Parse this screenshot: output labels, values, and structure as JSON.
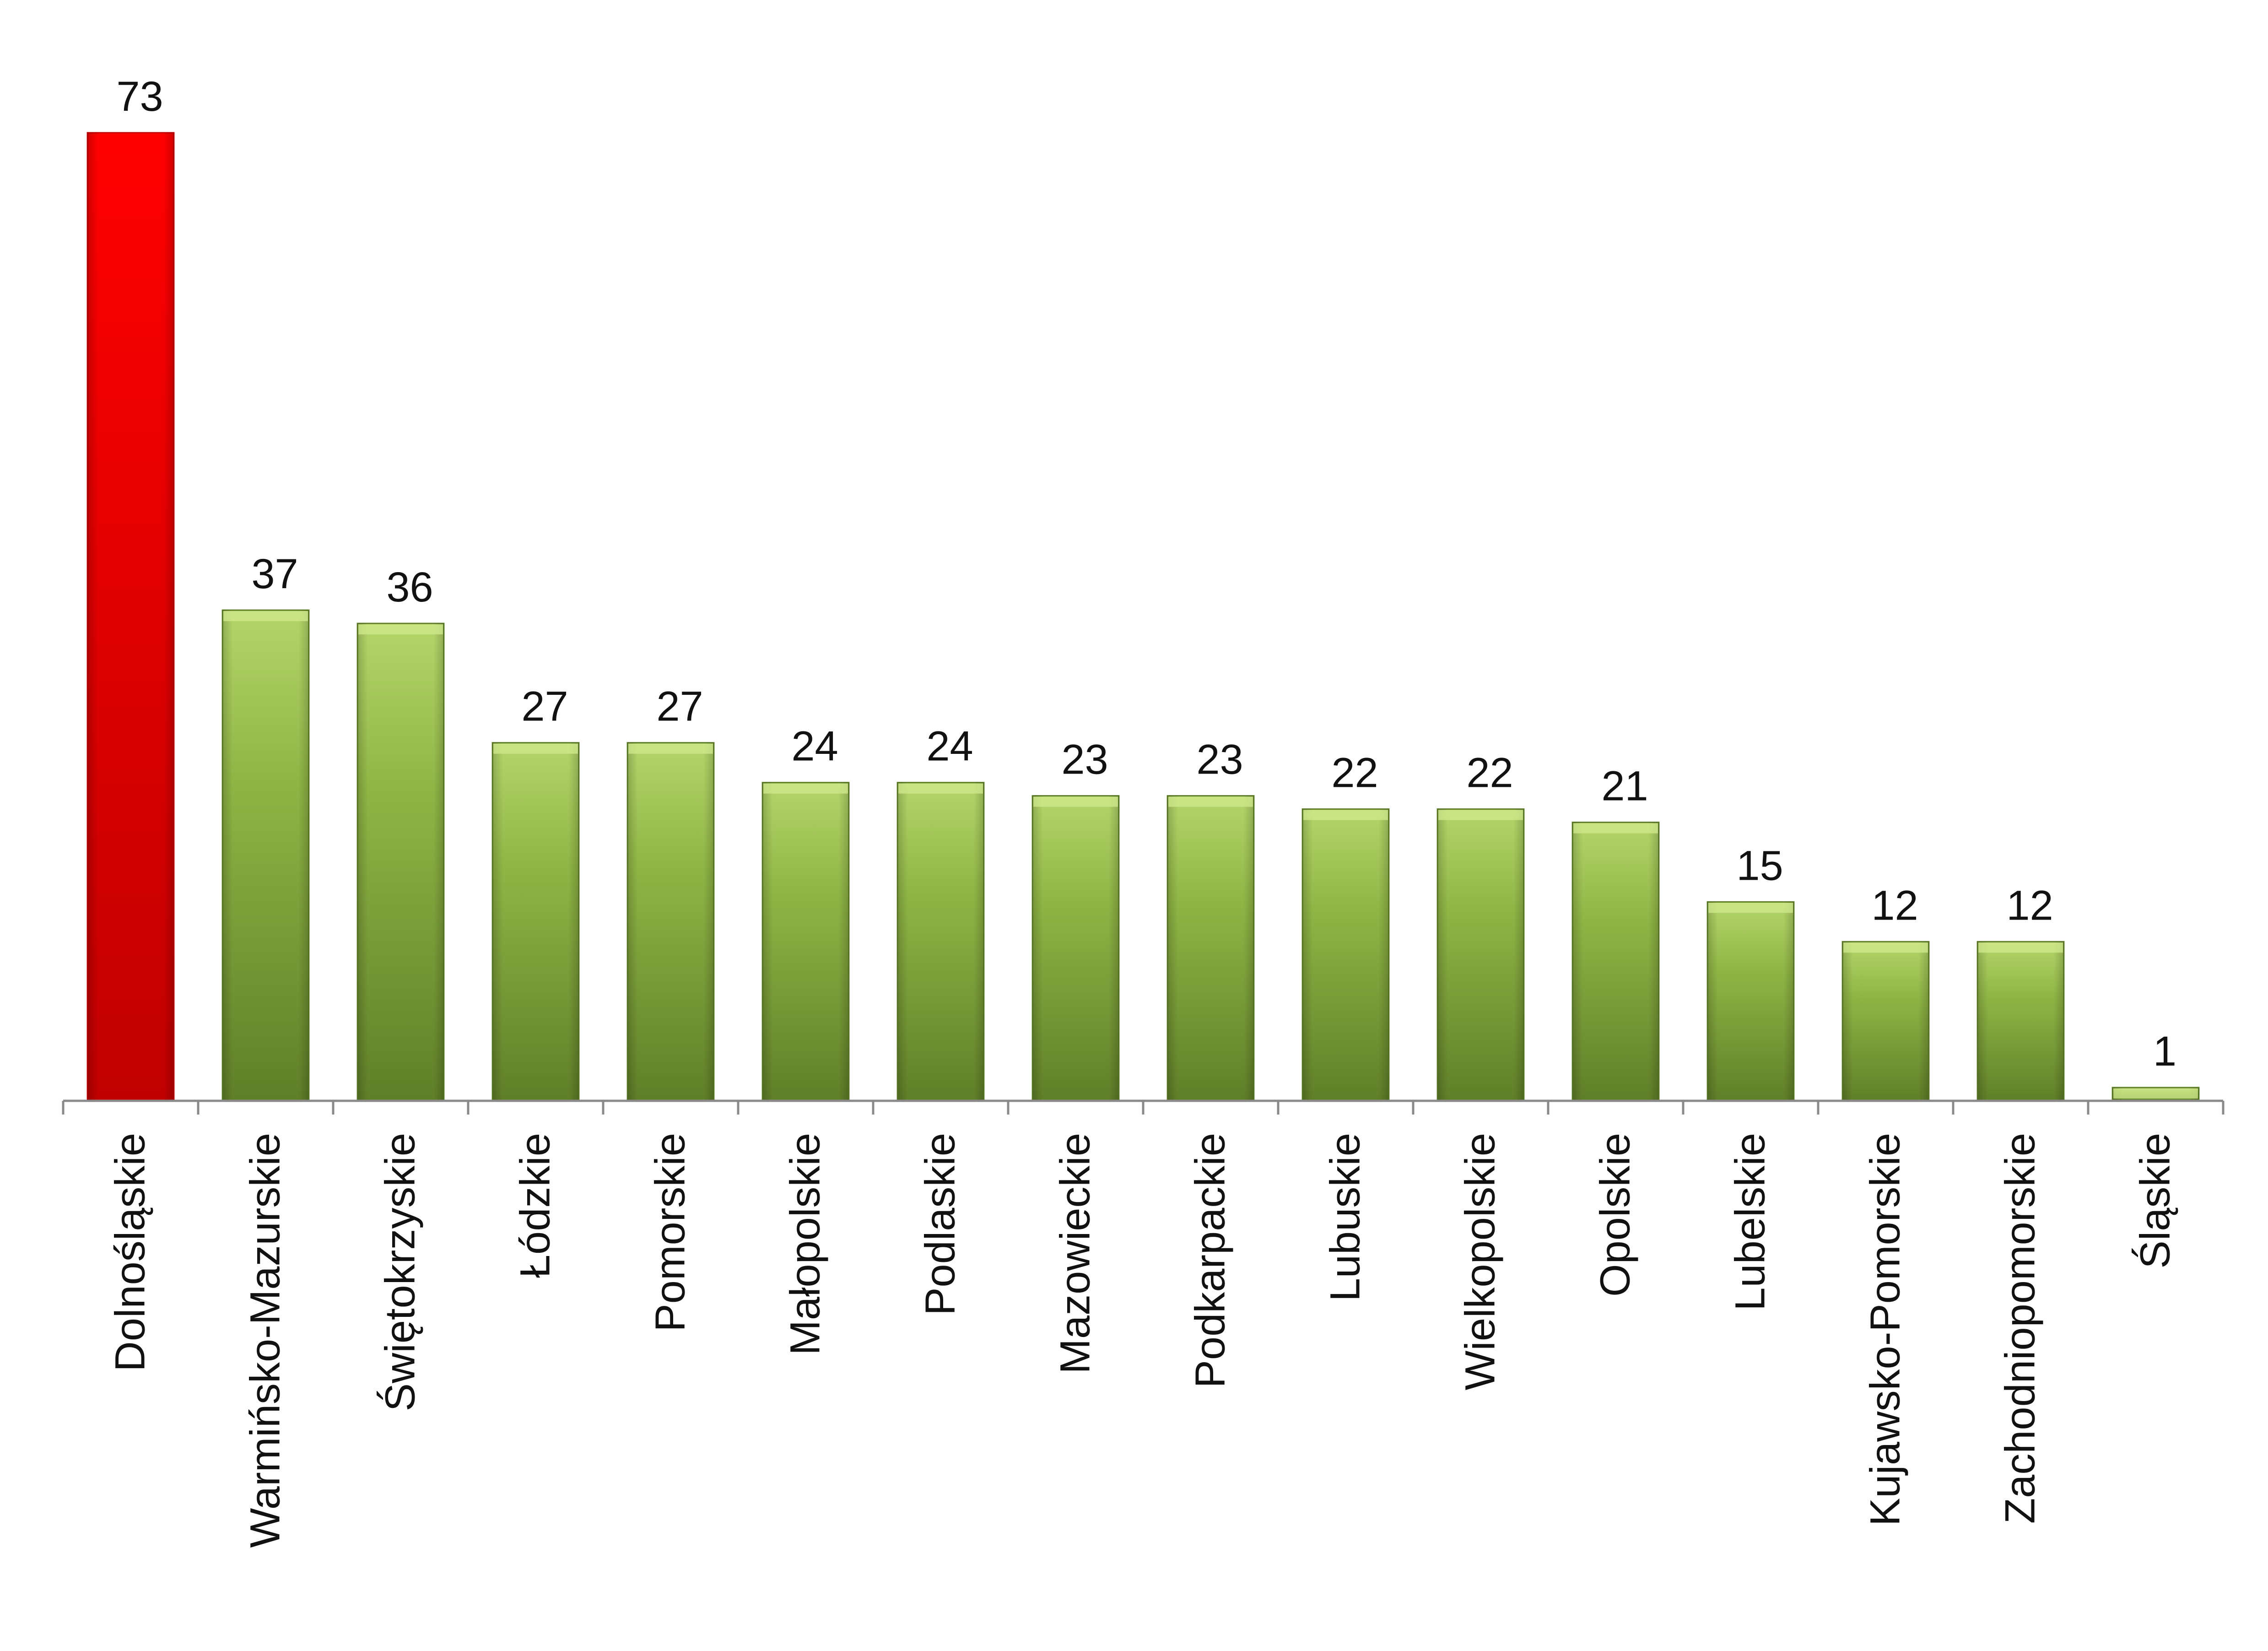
{
  "chart_data": {
    "type": "bar",
    "title": "",
    "xlabel": "",
    "ylabel": "",
    "ylim": [
      0,
      73
    ],
    "grid": false,
    "legend": "none",
    "categories": [
      "Dolnośląskie",
      "Warmińsko-Mazurskie",
      "Świętokrzyskie",
      "Łódzkie",
      "Pomorskie",
      "Małopolskie",
      "Podlaskie",
      "Mazowieckie",
      "Podkarpackie",
      "Lubuskie",
      "Wielkopolskie",
      "Opolskie",
      "Lubelskie",
      "Kujawsko-Pomorskie",
      "Zachodniopomorskie",
      "Śląskie"
    ],
    "values": [
      73,
      37,
      36,
      27,
      27,
      24,
      24,
      23,
      23,
      22,
      22,
      21,
      15,
      12,
      12,
      1
    ],
    "value_labels": [
      "73",
      "37",
      "36",
      "27",
      "27",
      "24",
      "24",
      "23",
      "23",
      "22",
      "22",
      "21",
      "15",
      "12",
      "12",
      "1"
    ],
    "colors": {
      "highlight": "#ff0000",
      "highlight_dark": "#c00000",
      "bar_light": "#b4d56a",
      "bar_mid": "#8fb545",
      "bar_dark": "#5f7f28",
      "axis": "#8a8a8a"
    },
    "highlight_index": 0
  }
}
